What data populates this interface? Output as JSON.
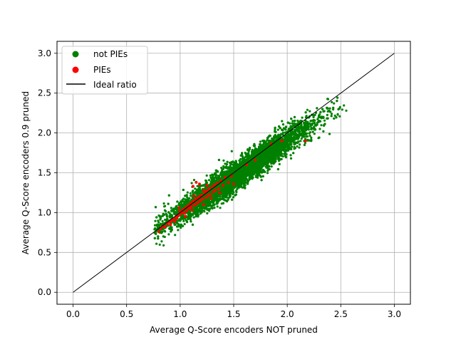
{
  "chart_data": {
    "type": "scatter",
    "title": "",
    "xlabel": "Average Q-Score encoders NOT pruned",
    "ylabel": "Average Q-Score encoders 0.9 pruned",
    "xlim": [
      -0.15,
      3.15
    ],
    "ylim": [
      -0.15,
      3.15
    ],
    "xticks": [
      "0.0",
      "0.5",
      "1.0",
      "1.5",
      "2.0",
      "2.5",
      "3.0"
    ],
    "yticks": [
      "0.0",
      "0.5",
      "1.0",
      "1.5",
      "2.0",
      "2.5",
      "3.0"
    ],
    "grid": true,
    "legend_position": "top-left",
    "series": [
      {
        "name": "not PIEs",
        "color": "#008000",
        "marker": "circle",
        "cloud": {
          "count": 6000,
          "x_range": [
            0.76,
            2.6
          ],
          "trend_slope": 0.91,
          "trend_intercept": 0.08,
          "spread_low": 0.09,
          "spread_high": 0.09
        }
      },
      {
        "name": "PIEs",
        "color": "#ff0000",
        "marker": "circle",
        "points": [
          [
            0.8,
            0.76
          ],
          [
            0.82,
            0.8
          ],
          [
            0.84,
            0.83
          ],
          [
            0.86,
            0.82
          ],
          [
            0.88,
            0.86
          ],
          [
            0.9,
            0.88
          ],
          [
            0.91,
            0.85
          ],
          [
            0.92,
            0.9
          ],
          [
            0.94,
            0.92
          ],
          [
            0.95,
            0.89
          ],
          [
            0.96,
            0.95
          ],
          [
            0.97,
            0.93
          ],
          [
            0.98,
            0.96
          ],
          [
            1.0,
            0.98
          ],
          [
            1.0,
            1.02
          ],
          [
            1.02,
            1.0
          ],
          [
            1.03,
            1.04
          ],
          [
            1.04,
            0.99
          ],
          [
            1.05,
            1.06
          ],
          [
            1.06,
            1.02
          ],
          [
            1.07,
            1.08
          ],
          [
            1.08,
            1.05
          ],
          [
            1.09,
            1.1
          ],
          [
            1.1,
            1.07
          ],
          [
            1.1,
            1.12
          ],
          [
            1.11,
            1.03
          ],
          [
            1.12,
            1.14
          ],
          [
            1.13,
            1.09
          ],
          [
            1.14,
            1.16
          ],
          [
            1.15,
            1.11
          ],
          [
            1.16,
            1.18
          ],
          [
            1.17,
            1.13
          ],
          [
            1.18,
            1.2
          ],
          [
            1.19,
            1.15
          ],
          [
            1.2,
            1.22
          ],
          [
            1.21,
            1.17
          ],
          [
            1.22,
            1.1
          ],
          [
            1.23,
            1.25
          ],
          [
            1.24,
            1.19
          ],
          [
            1.25,
            1.27
          ],
          [
            1.26,
            1.21
          ],
          [
            1.27,
            1.3
          ],
          [
            1.28,
            1.23
          ],
          [
            1.3,
            1.32
          ],
          [
            1.31,
            1.26
          ],
          [
            1.32,
            1.35
          ],
          [
            1.33,
            1.28
          ],
          [
            1.35,
            1.37
          ],
          [
            1.36,
            1.3
          ],
          [
            1.38,
            1.4
          ],
          [
            1.4,
            1.34
          ],
          [
            1.42,
            1.44
          ],
          [
            1.45,
            1.38
          ],
          [
            1.48,
            1.46
          ],
          [
            1.5,
            1.36
          ],
          [
            1.12,
            1.33
          ],
          [
            1.15,
            1.38
          ],
          [
            1.18,
            1.36
          ],
          [
            1.25,
            1.34
          ],
          [
            1.22,
            1.28
          ],
          [
            1.62,
            1.6
          ],
          [
            1.7,
            1.66
          ],
          [
            1.85,
            1.86
          ],
          [
            1.95,
            1.9
          ],
          [
            2.17,
            1.9
          ],
          [
            1.05,
            0.95
          ],
          [
            0.99,
            1.06
          ],
          [
            1.13,
            1.21
          ],
          [
            1.29,
            1.18
          ],
          [
            1.37,
            1.25
          ]
        ]
      },
      {
        "name": "Ideal ratio",
        "color": "#000000",
        "type": "line",
        "x": [
          0,
          3
        ],
        "y": [
          0,
          3
        ]
      }
    ]
  }
}
